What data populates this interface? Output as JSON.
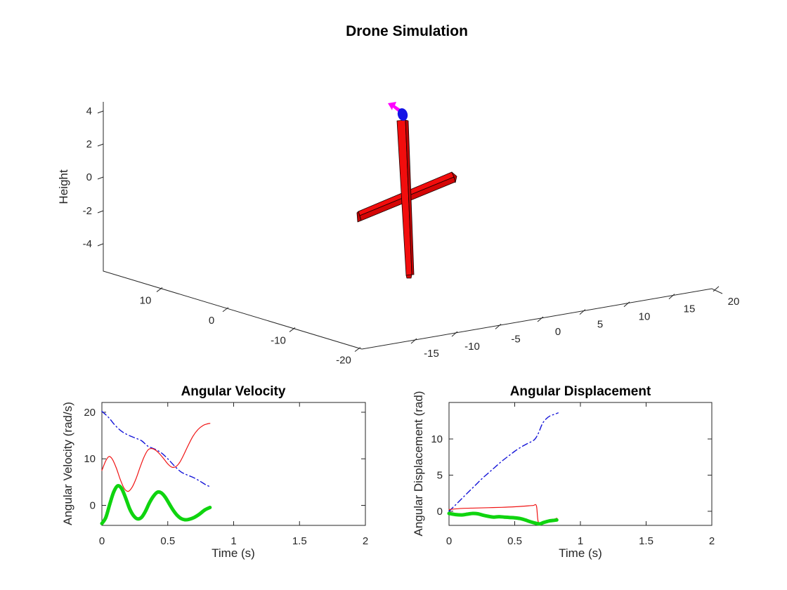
{
  "figure": {
    "title": "Drone Simulation"
  },
  "scene3d": {
    "zlabel": "Height",
    "z_ticks": [
      "4",
      "2",
      "0",
      "-2",
      "-4"
    ],
    "x_ticks": [
      "10",
      "0",
      "-10",
      "-20"
    ],
    "y_ticks": [
      "-15",
      "-10",
      "-5",
      "0",
      "5",
      "10",
      "15",
      "20"
    ],
    "drone_colors": {
      "arm_top": "#f20d0d",
      "arm_front": "#d40606",
      "arm_side": "#bf0404",
      "rotor": "#1414e6",
      "heading_arrow": "#ff00ff"
    }
  },
  "chart_data": [
    {
      "type": "3d-scene",
      "title": "Drone Simulation",
      "zlabel": "Height",
      "z_tick_values": [
        4,
        2,
        0,
        -2,
        -4
      ],
      "x_tick_values": [
        10,
        0,
        -10,
        -20
      ],
      "y_tick_values": [
        -15,
        -10,
        -5,
        0,
        5,
        10,
        15,
        20
      ],
      "elements": [
        "red crossed drone arms",
        "blue rotor marker",
        "magenta heading arrow"
      ]
    },
    {
      "type": "line",
      "title": "Angular Velocity",
      "xlabel": "Time (s)",
      "ylabel": "Angular Velocity (rad/s)",
      "xlim": [
        0,
        2
      ],
      "ylim": [
        -4.3,
        22.1
      ],
      "xticks": [
        0,
        0.5,
        1,
        1.5,
        2
      ],
      "yticks": [
        0,
        10,
        20
      ],
      "grid": false,
      "legend": "none",
      "series": [
        {
          "name": "blue-dashdot",
          "color": "#1414d8",
          "style": "dashdot",
          "width": 1.4,
          "points": [
            [
              0,
              20.2
            ],
            [
              0.05,
              18.9
            ],
            [
              0.1,
              17.2
            ],
            [
              0.15,
              15.9
            ],
            [
              0.2,
              15.1
            ],
            [
              0.25,
              14.5
            ],
            [
              0.3,
              13.9
            ],
            [
              0.35,
              12.7
            ],
            [
              0.4,
              12.1
            ],
            [
              0.45,
              11.3
            ],
            [
              0.5,
              10.0
            ],
            [
              0.55,
              8.5
            ],
            [
              0.6,
              7.2
            ],
            [
              0.65,
              6.5
            ],
            [
              0.7,
              5.9
            ],
            [
              0.75,
              5.1
            ],
            [
              0.79,
              4.4
            ],
            [
              0.83,
              3.9
            ]
          ]
        },
        {
          "name": "red-solid",
          "color": "#f01414",
          "style": "solid",
          "width": 1.2,
          "points": [
            [
              0,
              7.5
            ],
            [
              0.03,
              9.6
            ],
            [
              0.055,
              10.5
            ],
            [
              0.08,
              9.9
            ],
            [
              0.11,
              8.0
            ],
            [
              0.14,
              5.5
            ],
            [
              0.17,
              3.6
            ],
            [
              0.2,
              3.0
            ],
            [
              0.23,
              3.9
            ],
            [
              0.26,
              5.8
            ],
            [
              0.29,
              8.2
            ],
            [
              0.32,
              10.4
            ],
            [
              0.35,
              11.9
            ],
            [
              0.38,
              12.2
            ],
            [
              0.41,
              11.8
            ],
            [
              0.44,
              11.0
            ],
            [
              0.47,
              10.0
            ],
            [
              0.5,
              8.9
            ],
            [
              0.53,
              8.2
            ],
            [
              0.56,
              8.3
            ],
            [
              0.59,
              9.2
            ],
            [
              0.62,
              10.8
            ],
            [
              0.65,
              12.6
            ],
            [
              0.69,
              14.8
            ],
            [
              0.73,
              16.3
            ],
            [
              0.77,
              17.2
            ],
            [
              0.8,
              17.5
            ],
            [
              0.82,
              17.6
            ]
          ]
        },
        {
          "name": "green-thick",
          "color": "#0fd40f",
          "style": "solid",
          "width": 5,
          "points": [
            [
              0,
              -3.9
            ],
            [
              0.03,
              -2.6
            ],
            [
              0.06,
              0.3
            ],
            [
              0.09,
              2.9
            ],
            [
              0.12,
              4.2
            ],
            [
              0.15,
              3.6
            ],
            [
              0.18,
              1.6
            ],
            [
              0.21,
              -0.7
            ],
            [
              0.24,
              -2.2
            ],
            [
              0.27,
              -2.9
            ],
            [
              0.3,
              -2.6
            ],
            [
              0.33,
              -1.3
            ],
            [
              0.36,
              0.5
            ],
            [
              0.39,
              1.9
            ],
            [
              0.42,
              2.8
            ],
            [
              0.45,
              2.7
            ],
            [
              0.48,
              1.8
            ],
            [
              0.51,
              0.4
            ],
            [
              0.54,
              -1.0
            ],
            [
              0.57,
              -2.1
            ],
            [
              0.6,
              -2.8
            ],
            [
              0.63,
              -3.1
            ],
            [
              0.66,
              -3.0
            ],
            [
              0.7,
              -2.6
            ],
            [
              0.74,
              -1.9
            ],
            [
              0.78,
              -1.0
            ],
            [
              0.82,
              -0.45
            ]
          ]
        }
      ]
    },
    {
      "type": "line",
      "title": "Angular Displacement",
      "xlabel": "Time (s)",
      "ylabel": "Angular Displacement (rad)",
      "xlim": [
        0,
        2
      ],
      "ylim": [
        -1.95,
        15.05
      ],
      "xticks": [
        0,
        0.5,
        1,
        1.5,
        2
      ],
      "yticks": [
        0,
        5,
        10
      ],
      "grid": false,
      "legend": "none",
      "series": [
        {
          "name": "blue-dashdot",
          "color": "#1414d8",
          "style": "dashdot",
          "width": 1.4,
          "points": [
            [
              0,
              0
            ],
            [
              0.05,
              0.9
            ],
            [
              0.1,
              1.8
            ],
            [
              0.15,
              2.7
            ],
            [
              0.2,
              3.6
            ],
            [
              0.25,
              4.5
            ],
            [
              0.3,
              5.3
            ],
            [
              0.35,
              6.1
            ],
            [
              0.4,
              6.9
            ],
            [
              0.45,
              7.6
            ],
            [
              0.5,
              8.3
            ],
            [
              0.55,
              8.9
            ],
            [
              0.6,
              9.4
            ],
            [
              0.65,
              9.9
            ],
            [
              0.68,
              10.8
            ],
            [
              0.71,
              12.1
            ],
            [
              0.74,
              12.8
            ],
            [
              0.77,
              13.2
            ],
            [
              0.8,
              13.4
            ],
            [
              0.83,
              13.6
            ]
          ]
        },
        {
          "name": "red-solid",
          "color": "#f01414",
          "style": "solid",
          "width": 1.2,
          "points": [
            [
              0,
              0.25
            ],
            [
              0.1,
              0.4
            ],
            [
              0.2,
              0.45
            ],
            [
              0.3,
              0.5
            ],
            [
              0.4,
              0.55
            ],
            [
              0.5,
              0.62
            ],
            [
              0.58,
              0.72
            ],
            [
              0.64,
              0.8
            ],
            [
              0.665,
              0.75
            ],
            [
              0.68,
              -1.5
            ],
            [
              0.72,
              -1.45
            ],
            [
              0.76,
              -1.3
            ],
            [
              0.8,
              -1.1
            ],
            [
              0.82,
              -0.95
            ]
          ]
        },
        {
          "name": "green-thick",
          "color": "#0fd40f",
          "style": "solid",
          "width": 5,
          "points": [
            [
              0,
              -0.3
            ],
            [
              0.05,
              -0.45
            ],
            [
              0.1,
              -0.5
            ],
            [
              0.14,
              -0.4
            ],
            [
              0.18,
              -0.3
            ],
            [
              0.22,
              -0.35
            ],
            [
              0.26,
              -0.55
            ],
            [
              0.3,
              -0.7
            ],
            [
              0.34,
              -0.8
            ],
            [
              0.38,
              -0.75
            ],
            [
              0.42,
              -0.8
            ],
            [
              0.46,
              -0.85
            ],
            [
              0.5,
              -0.9
            ],
            [
              0.54,
              -1.0
            ],
            [
              0.58,
              -1.2
            ],
            [
              0.62,
              -1.45
            ],
            [
              0.66,
              -1.65
            ],
            [
              0.69,
              -1.75
            ],
            [
              0.72,
              -1.55
            ],
            [
              0.76,
              -1.35
            ],
            [
              0.8,
              -1.25
            ],
            [
              0.82,
              -1.2
            ]
          ]
        }
      ]
    }
  ]
}
